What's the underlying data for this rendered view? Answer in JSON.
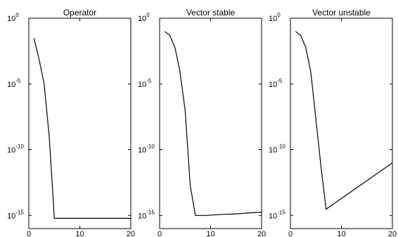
{
  "chart_data": [
    {
      "type": "line",
      "title": "Operator",
      "xlabel": "",
      "ylabel": "",
      "xlim": [
        0,
        20
      ],
      "ylim": [
        1e-16,
        1
      ],
      "yscale": "log",
      "grid": false,
      "x_ticks": [
        {
          "value": 0,
          "label": "0"
        },
        {
          "value": 10,
          "label": "10"
        },
        {
          "value": 20,
          "label": "20"
        }
      ],
      "y_ticks": [
        {
          "value": 1,
          "base": "10",
          "exp": "0"
        },
        {
          "value": 1e-05,
          "base": "10",
          "exp": "-5"
        },
        {
          "value": 1e-10,
          "base": "10",
          "exp": "-10"
        },
        {
          "value": 1e-15,
          "base": "10",
          "exp": "-15"
        }
      ],
      "series": [
        {
          "x": [
            1,
            2,
            3,
            4,
            5,
            6,
            20
          ],
          "y": [
            0.03,
            0.0008,
            1e-05,
            1e-09,
            6e-16,
            6e-16,
            6e-16
          ]
        }
      ]
    },
    {
      "type": "line",
      "title": "Vector stable",
      "xlabel": "",
      "ylabel": "",
      "xlim": [
        0,
        20
      ],
      "ylim": [
        1e-16,
        1
      ],
      "yscale": "log",
      "grid": false,
      "x_ticks": [
        {
          "value": 0,
          "label": "0"
        },
        {
          "value": 10,
          "label": "10"
        },
        {
          "value": 20,
          "label": "20"
        }
      ],
      "y_ticks": [
        {
          "value": 1,
          "base": "10",
          "exp": "0"
        },
        {
          "value": 1e-05,
          "base": "10",
          "exp": "-5"
        },
        {
          "value": 1e-10,
          "base": "10",
          "exp": "-10"
        },
        {
          "value": 1e-15,
          "base": "10",
          "exp": "-15"
        }
      ],
      "series": [
        {
          "x": [
            1,
            2,
            3,
            4,
            5,
            6,
            7,
            9,
            12,
            15,
            18,
            20
          ],
          "y": [
            0.1,
            0.05,
            0.006,
            8e-05,
            1e-07,
            2e-13,
            1e-15,
            1e-15,
            1.2e-15,
            1.3e-15,
            1.6e-15,
            1.8e-15
          ]
        }
      ]
    },
    {
      "type": "line",
      "title": "Vector unstable",
      "xlabel": "",
      "ylabel": "",
      "xlim": [
        0,
        20
      ],
      "ylim": [
        1e-16,
        1
      ],
      "yscale": "log",
      "grid": false,
      "x_ticks": [
        {
          "value": 0,
          "label": "0"
        },
        {
          "value": 10,
          "label": "10"
        },
        {
          "value": 20,
          "label": "20"
        }
      ],
      "y_ticks": [
        {
          "value": 1,
          "base": "10",
          "exp": "0"
        },
        {
          "value": 1e-05,
          "base": "10",
          "exp": "-5"
        },
        {
          "value": 1e-10,
          "base": "10",
          "exp": "-10"
        },
        {
          "value": 1e-15,
          "base": "10",
          "exp": "-15"
        }
      ],
      "series": [
        {
          "x": [
            1,
            2,
            3,
            4,
            5,
            6,
            7,
            20
          ],
          "y": [
            0.1,
            0.05,
            0.006,
            8e-05,
            2e-08,
            5e-12,
            3e-15,
            1e-11
          ]
        }
      ]
    }
  ]
}
